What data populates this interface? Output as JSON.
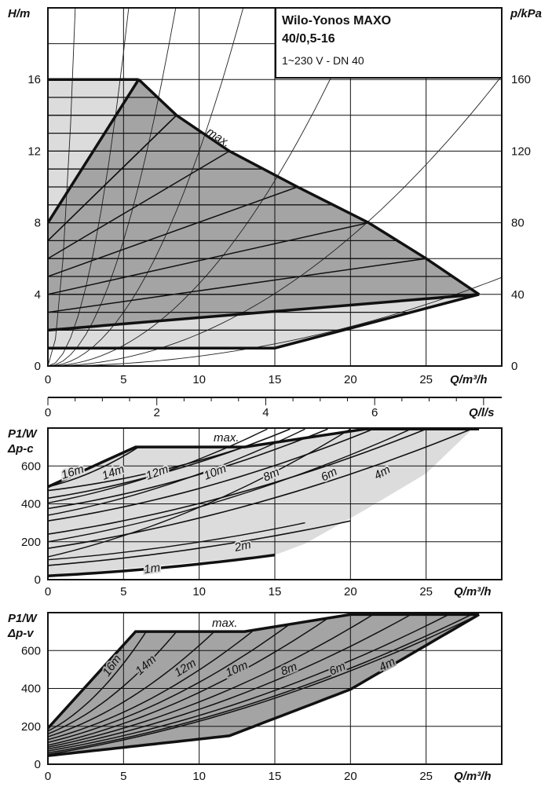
{
  "title_box": {
    "line1": "Wilo-Yonos MAXO",
    "line2": "40/0,5-16",
    "line3": "1~230 V - DN 40"
  },
  "chart_data": [
    {
      "type": "line",
      "id": "head",
      "ylabel": "H/m",
      "y2label": "p/kPa",
      "xlabel": "Q/m³/h",
      "x2label": "Q/l/s",
      "xlim": [
        0,
        30
      ],
      "ylim": [
        0,
        20
      ],
      "x_ticks": [
        0,
        5,
        10,
        15,
        20,
        25
      ],
      "y_ticks": [
        0,
        4,
        8,
        12,
        16
      ],
      "y2_ticks": [
        0,
        40,
        80,
        120,
        160
      ],
      "x2_ticks": [
        0,
        2,
        4,
        6
      ],
      "max_label": "max.",
      "max_curve": [
        [
          6,
          16
        ],
        [
          8.5,
          14
        ],
        [
          12,
          12
        ],
        [
          16.5,
          10
        ],
        [
          21.2,
          8
        ],
        [
          25,
          6
        ],
        [
          28.5,
          4
        ]
      ],
      "dp_v_top": [
        [
          0,
          8
        ],
        [
          6,
          16
        ]
      ],
      "dp_v_bottom": [
        [
          0,
          2
        ],
        [
          28.5,
          4
        ]
      ],
      "min_curve": [
        [
          0,
          1
        ],
        [
          15,
          1
        ],
        [
          28.5,
          4
        ]
      ],
      "constant_head_levels": [
        1,
        2,
        3,
        4,
        5,
        6,
        7,
        8,
        9,
        10,
        11,
        12,
        13,
        14,
        15,
        16
      ],
      "system_curve_k": [
        6.0,
        0.7,
        0.28,
        0.12,
        0.046,
        0.018,
        0.0055
      ]
    },
    {
      "type": "line",
      "id": "power_dp_c",
      "ylabel": "P1/W",
      "mode_label": "Δp-c",
      "xlabel": "Q/m³/h",
      "xlim": [
        0,
        30
      ],
      "ylim": [
        0,
        800
      ],
      "x_ticks": [
        0,
        5,
        10,
        15,
        20,
        25
      ],
      "y_ticks": [
        0,
        200,
        400,
        600
      ],
      "max_label": "max.",
      "max_curve": [
        [
          0,
          490
        ],
        [
          5.8,
          700
        ],
        [
          13,
          700
        ],
        [
          21,
          795
        ],
        [
          28.5,
          795
        ]
      ],
      "curve_labels": [
        "16m",
        "14m",
        "12m",
        "10m",
        "8m",
        "6m",
        "4m",
        "2m",
        "1m"
      ],
      "series": [
        {
          "name": "1m",
          "x": [
            0,
            15
          ],
          "y": [
            20,
            130
          ]
        },
        {
          "name": "2m",
          "x": [
            0,
            20
          ],
          "y": [
            75,
            310
          ]
        },
        {
          "name": "4m",
          "x": [
            0,
            28
          ],
          "y": [
            165,
            795
          ]
        },
        {
          "name": "6m",
          "x": [
            0,
            25
          ],
          "y": [
            240,
            795
          ]
        },
        {
          "name": "8m",
          "x": [
            0,
            21.5
          ],
          "y": [
            310,
            795
          ]
        },
        {
          "name": "10m",
          "x": [
            0,
            18.5
          ],
          "y": [
            375,
            795
          ]
        },
        {
          "name": "12m",
          "x": [
            0,
            16
          ],
          "y": [
            430,
            795
          ]
        },
        {
          "name": "14m",
          "x": [
            0,
            13
          ],
          "y": [
            470,
            700
          ]
        },
        {
          "name": "16m",
          "x": [
            0,
            6
          ],
          "y": [
            490,
            700
          ]
        }
      ]
    },
    {
      "type": "line",
      "id": "power_dp_v",
      "ylabel": "P1/W",
      "mode_label": "Δp-v",
      "xlabel": "Q/m³/h",
      "xlim": [
        0,
        30
      ],
      "ylim": [
        0,
        800
      ],
      "x_ticks": [
        0,
        5,
        10,
        15,
        20,
        25
      ],
      "y_ticks": [
        0,
        200,
        400,
        600
      ],
      "max_label": "max.",
      "max_curve": [
        [
          0,
          190
        ],
        [
          5.8,
          700
        ],
        [
          13,
          700
        ],
        [
          20,
          790
        ],
        [
          28.5,
          790
        ]
      ],
      "lower_curve": [
        [
          0,
          45
        ],
        [
          12,
          150
        ],
        [
          20,
          395
        ],
        [
          28.5,
          790
        ]
      ],
      "curve_labels": [
        "16m",
        "14m",
        "12m",
        "10m",
        "8m",
        "6m",
        "4m"
      ]
    }
  ]
}
